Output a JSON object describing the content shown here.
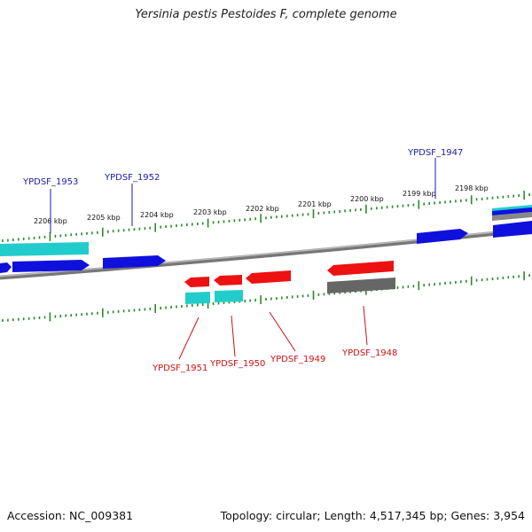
{
  "title": "Yersinia pestis Pestoides F, complete genome",
  "footer": {
    "accession": "Accession: NC_009381",
    "summary": "Topology: circular; Length: 4,517,345 bp; Genes: 3,954"
  },
  "colors": {
    "forward_gene": "#1010dd",
    "reverse_gene": "#ee1111",
    "cds_cyan": "#22cccc",
    "pseudo_gray": "#666666",
    "backbone": "#888888",
    "tick": "#2a8a2a",
    "label_forward": "#1a1aaa",
    "label_reverse": "#cc1111"
  },
  "kbp_labels": [
    "2206 kbp",
    "2205 kbp",
    "2204 kbp",
    "2203 kbp",
    "2202 kbp",
    "2201 kbp",
    "2200 kbp",
    "2199 kbp",
    "2198 kbp"
  ],
  "forward_gene_labels": [
    "YPDSF_1953",
    "YPDSF_1952",
    "YPDSF_1947"
  ],
  "reverse_gene_labels": [
    "YPDSF_1951",
    "YPDSF_1950",
    "YPDSF_1949",
    "YPDSF_1948"
  ]
}
